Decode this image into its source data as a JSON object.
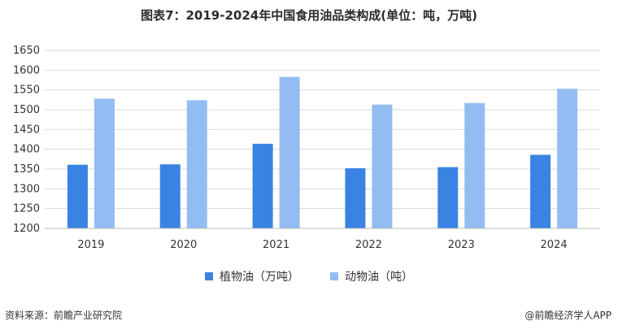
{
  "header": {
    "title": "图表7：2019-2024年中国食用油品类构成(单位：吨，万吨)"
  },
  "footer": {
    "source": "资料来源：前瞻产业研究院",
    "copyright": "@前瞻经济学人APP"
  },
  "colors": {
    "series_1": "#3a83e3",
    "series_2": "#93bdf2",
    "grid": "#d9d9d9"
  },
  "chart_data": {
    "type": "bar",
    "title": "图表7：2019-2024年中国食用油品类构成(单位：吨，万吨)",
    "categories": [
      "2019",
      "2020",
      "2021",
      "2022",
      "2023",
      "2024"
    ],
    "series": [
      {
        "name": "植物油（万吨）",
        "values": [
          1361,
          1362,
          1414,
          1352,
          1355,
          1386
        ]
      },
      {
        "name": "动物油（吨）",
        "values": [
          1528,
          1524,
          1583,
          1513,
          1517,
          1553
        ]
      }
    ],
    "ylim": [
      1200,
      1650
    ],
    "yticks": [
      "1200",
      "1250",
      "1300",
      "1350",
      "1400",
      "1450",
      "1500",
      "1550",
      "1600",
      "1650"
    ],
    "grid": true,
    "legend_position": "bottom"
  }
}
